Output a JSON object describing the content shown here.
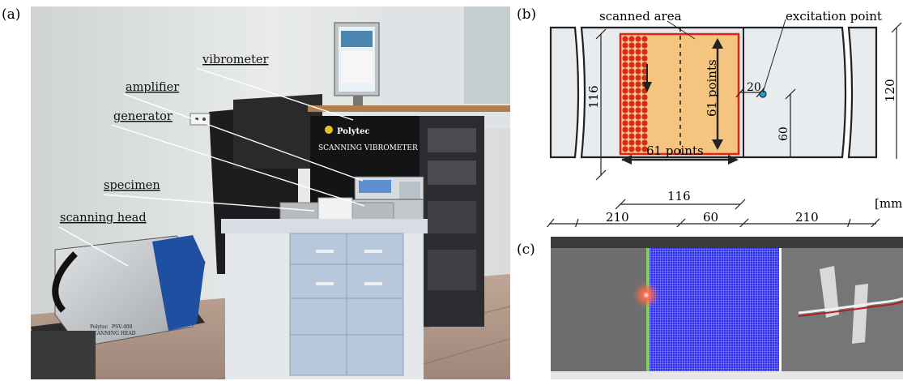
{
  "panels": {
    "a": "(a)",
    "b": "(b)",
    "c": "(c)"
  },
  "photo_a": {
    "callouts": {
      "vibrometer": "vibrometer",
      "amplifier": "amplifier",
      "generator": "generator",
      "specimen": "specimen",
      "scanning_head": "scanning head"
    },
    "device_text": {
      "brand": "Polytec",
      "cabinet": "SCANNING VIBROMETER",
      "head_brand": "Polytec",
      "head_model": "PSV-400",
      "head_name": "SCANNING HEAD"
    }
  },
  "diagram_b": {
    "labels": {
      "scanned_area": "scanned area",
      "excitation_point": "excitation point",
      "points_vertical": "61 points",
      "points_horizontal": "61 points",
      "unit": "[mm]"
    },
    "dims": {
      "height_left": "116",
      "offset_20": "20",
      "offset_60": "60",
      "height_right": "120",
      "width_scan": "116",
      "len_left": "210",
      "len_mid": "60",
      "len_right": "210"
    },
    "colors": {
      "scan_fill": "#f5c47e",
      "scan_border": "#e2231a",
      "dots": "#d42a1e",
      "plate": "#e9ecee",
      "excitation": "#1f9fd6"
    }
  },
  "photo_c": {
    "colors": {
      "grid": "#2f2ff0",
      "specimen": "#6e6e6e"
    }
  }
}
